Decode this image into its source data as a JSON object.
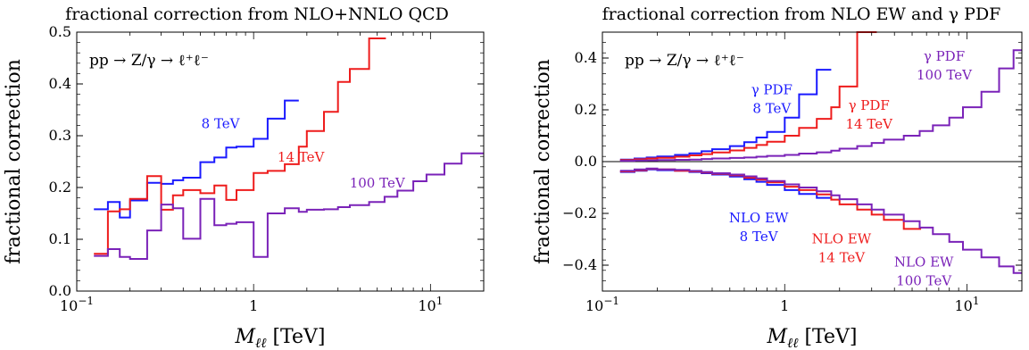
{
  "chart_data": [
    {
      "type": "line",
      "title": "fractional correction from NLO+NNLO QCD",
      "xlabel": "M_ℓℓ [TeV]",
      "ylabel": "fractional correction",
      "xscale": "log",
      "xlim": [
        0.1,
        20
      ],
      "ylim": [
        0.0,
        0.5
      ],
      "yticks": [
        "0.0",
        "0.1",
        "0.2",
        "0.3",
        "0.4",
        "0.5"
      ],
      "xticks": [
        {
          "base": "10",
          "exp": "−1",
          "value": 0.1
        },
        {
          "base": "1",
          "exp": "",
          "value": 1
        },
        {
          "base": "10",
          "exp": "1",
          "value": 10
        }
      ],
      "annotation": "pp → Z/γ → ℓ⁺ℓ⁻",
      "series": [
        {
          "name": "8 TeV",
          "color": "#1a1aff",
          "labelPos": [
            0.65,
            0.315
          ],
          "edges": [
            0.125,
            0.15,
            0.175,
            0.2,
            0.25,
            0.3,
            0.35,
            0.4,
            0.5,
            0.6,
            0.7,
            0.8,
            1.0,
            1.2,
            1.5,
            1.8
          ],
          "values": [
            0.158,
            0.172,
            0.142,
            0.175,
            0.209,
            0.207,
            0.214,
            0.219,
            0.249,
            0.258,
            0.277,
            0.279,
            0.294,
            0.333,
            0.368
          ]
        },
        {
          "name": "14 TeV",
          "color": "#ee1c1c",
          "labelPos": [
            1.85,
            0.25
          ],
          "edges": [
            0.125,
            0.15,
            0.175,
            0.2,
            0.25,
            0.3,
            0.35,
            0.4,
            0.5,
            0.6,
            0.7,
            0.8,
            1.0,
            1.2,
            1.5,
            1.8,
            2.0,
            2.5,
            3.0,
            3.5,
            4.5,
            5.6
          ],
          "values": [
            0.072,
            0.154,
            0.158,
            0.178,
            0.222,
            0.157,
            0.185,
            0.195,
            0.189,
            0.204,
            0.176,
            0.195,
            0.228,
            0.232,
            0.245,
            0.279,
            0.309,
            0.346,
            0.404,
            0.429,
            0.488
          ]
        },
        {
          "name": "100 TeV",
          "color": "#7a22b8",
          "labelPos": [
            5.0,
            0.2
          ],
          "edges": [
            0.125,
            0.15,
            0.175,
            0.2,
            0.25,
            0.3,
            0.35,
            0.4,
            0.5,
            0.6,
            0.7,
            0.8,
            1.0,
            1.2,
            1.5,
            1.8,
            2.0,
            2.5,
            3.0,
            3.5,
            4.5,
            5.5,
            6.5,
            8.0,
            9.5,
            12,
            15,
            20
          ],
          "values": [
            0.068,
            0.081,
            0.066,
            0.062,
            0.117,
            0.167,
            0.16,
            0.101,
            0.178,
            0.127,
            0.13,
            0.133,
            0.066,
            0.15,
            0.16,
            0.153,
            0.157,
            0.158,
            0.162,
            0.166,
            0.172,
            0.182,
            0.194,
            0.212,
            0.225,
            0.246,
            0.266
          ]
        }
      ]
    },
    {
      "type": "line",
      "title": "fractional correction from NLO EW and γ PDF",
      "xlabel": "M_ℓℓ [TeV]",
      "ylabel": "",
      "xscale": "log",
      "xlim": [
        0.1,
        20
      ],
      "ylim": [
        -0.5,
        0.5
      ],
      "yticks": [
        "−0.4",
        "−0.2",
        "0.0",
        "0.2",
        "0.4"
      ],
      "ytickValues": [
        -0.4,
        -0.2,
        0.0,
        0.2,
        0.4
      ],
      "xticks": [
        {
          "base": "10",
          "exp": "−1",
          "value": 0.1
        },
        {
          "base": "1",
          "exp": "",
          "value": 1
        },
        {
          "base": "10",
          "exp": "1",
          "value": 10
        }
      ],
      "annotation": "pp → Z/γ → ℓ⁺ℓ⁻",
      "zeroLine": true,
      "series": [
        {
          "name": "γ PDF 8 TeV",
          "lines": [
            "γ PDF",
            "8 TeV"
          ],
          "color": "#1a1aff",
          "labelPos": [
            0.85,
            0.26
          ],
          "edges": [
            0.125,
            0.15,
            0.175,
            0.2,
            0.25,
            0.3,
            0.35,
            0.4,
            0.5,
            0.6,
            0.7,
            0.8,
            1.0,
            1.2,
            1.5,
            1.8
          ],
          "values": [
            0.008,
            0.012,
            0.016,
            0.02,
            0.026,
            0.032,
            0.04,
            0.048,
            0.06,
            0.075,
            0.093,
            0.115,
            0.17,
            0.26,
            0.355
          ]
        },
        {
          "name": "γ PDF 14 TeV",
          "lines": [
            "γ PDF",
            "14 TeV"
          ],
          "color": "#ee1c1c",
          "labelPos": [
            2.9,
            0.2
          ],
          "edges": [
            0.125,
            0.15,
            0.175,
            0.2,
            0.25,
            0.3,
            0.35,
            0.4,
            0.5,
            0.6,
            0.7,
            0.8,
            1.0,
            1.2,
            1.5,
            1.8,
            2.0,
            2.5,
            3.2
          ],
          "values": [
            0.006,
            0.009,
            0.012,
            0.015,
            0.019,
            0.024,
            0.029,
            0.035,
            0.043,
            0.053,
            0.064,
            0.077,
            0.1,
            0.13,
            0.165,
            0.21,
            0.29,
            0.5
          ]
        },
        {
          "name": "γ PDF 100 TeV",
          "lines": [
            "γ PDF",
            "100 TeV"
          ],
          "color": "#7a22b8",
          "labelPos": [
            7.5,
            0.39
          ],
          "edges": [
            0.125,
            0.15,
            0.175,
            0.2,
            0.25,
            0.3,
            0.35,
            0.4,
            0.5,
            0.6,
            0.7,
            0.8,
            1.0,
            1.2,
            1.5,
            1.8,
            2.0,
            2.5,
            3.0,
            3.5,
            4.5,
            5.5,
            6.5,
            8.0,
            9.5,
            12,
            15,
            18,
            20
          ],
          "values": [
            0.003,
            0.004,
            0.005,
            0.006,
            0.007,
            0.008,
            0.01,
            0.012,
            0.014,
            0.016,
            0.019,
            0.022,
            0.026,
            0.031,
            0.036,
            0.042,
            0.05,
            0.06,
            0.072,
            0.085,
            0.1,
            0.118,
            0.14,
            0.17,
            0.21,
            0.27,
            0.36,
            0.43
          ]
        },
        {
          "name": "NLO EW 8 TeV",
          "lines": [
            "NLO EW",
            "8 TeV"
          ],
          "color": "#1a1aff",
          "labelPos": [
            0.72,
            -0.235
          ],
          "edges": [
            0.125,
            0.15,
            0.175,
            0.2,
            0.25,
            0.3,
            0.35,
            0.4,
            0.5,
            0.6,
            0.7,
            0.8,
            1.0,
            1.2,
            1.5,
            1.8
          ],
          "values": [
            -0.04,
            -0.035,
            -0.03,
            -0.033,
            -0.035,
            -0.04,
            -0.045,
            -0.05,
            -0.058,
            -0.068,
            -0.078,
            -0.09,
            -0.11,
            -0.125,
            -0.14
          ]
        },
        {
          "name": "NLO EW 14 TeV",
          "lines": [
            "NLO EW",
            "14 TeV"
          ],
          "color": "#ee1c1c",
          "labelPos": [
            2.05,
            -0.315
          ],
          "edges": [
            0.125,
            0.15,
            0.175,
            0.2,
            0.25,
            0.3,
            0.35,
            0.4,
            0.5,
            0.6,
            0.7,
            0.8,
            1.0,
            1.2,
            1.5,
            1.8,
            2.0,
            2.5,
            3.0,
            3.5,
            4.5,
            5.6
          ],
          "values": [
            -0.038,
            -0.033,
            -0.028,
            -0.03,
            -0.035,
            -0.038,
            -0.042,
            -0.047,
            -0.053,
            -0.062,
            -0.07,
            -0.08,
            -0.097,
            -0.11,
            -0.127,
            -0.147,
            -0.165,
            -0.185,
            -0.205,
            -0.225,
            -0.26
          ]
        },
        {
          "name": "NLO EW 100 TeV",
          "lines": [
            "NLO EW",
            "100 TeV"
          ],
          "color": "#7a22b8",
          "labelPos": [
            5.8,
            -0.405
          ],
          "edges": [
            0.125,
            0.15,
            0.175,
            0.2,
            0.25,
            0.3,
            0.35,
            0.4,
            0.5,
            0.6,
            0.7,
            0.8,
            1.0,
            1.2,
            1.5,
            1.8,
            2.0,
            2.5,
            3.0,
            3.5,
            4.5,
            5.5,
            6.5,
            8.0,
            9.5,
            12,
            15,
            18,
            20
          ],
          "values": [
            -0.035,
            -0.03,
            -0.027,
            -0.03,
            -0.032,
            -0.036,
            -0.04,
            -0.045,
            -0.05,
            -0.057,
            -0.065,
            -0.075,
            -0.088,
            -0.1,
            -0.115,
            -0.13,
            -0.145,
            -0.165,
            -0.185,
            -0.205,
            -0.23,
            -0.255,
            -0.28,
            -0.31,
            -0.34,
            -0.37,
            -0.405,
            -0.43
          ]
        }
      ]
    }
  ]
}
